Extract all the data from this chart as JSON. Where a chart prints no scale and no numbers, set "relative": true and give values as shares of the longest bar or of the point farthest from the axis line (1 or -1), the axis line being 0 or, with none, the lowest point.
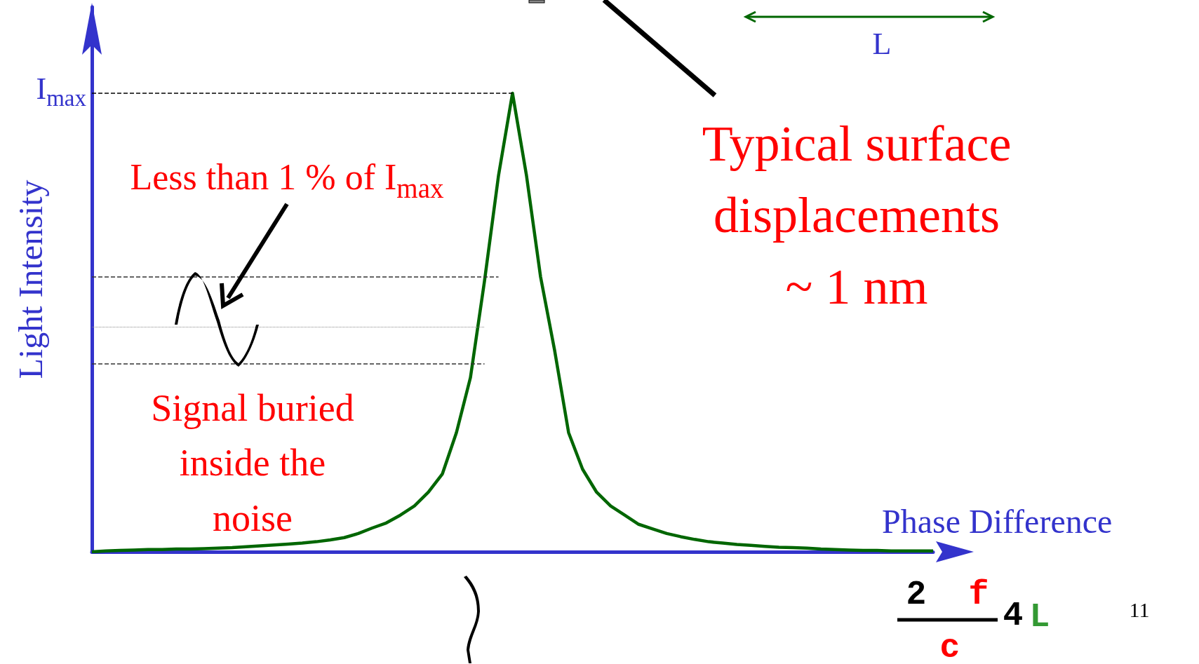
{
  "chart_data": {
    "type": "line",
    "relative": true,
    "xlabel": "Phase Difference",
    "ylabel": "Light Intensity",
    "categories": [
      null,
      null,
      null,
      null,
      null,
      null,
      null,
      null,
      null,
      null,
      null,
      null,
      null,
      null,
      null,
      null,
      null,
      null,
      null,
      null,
      null,
      null,
      null,
      null,
      null,
      null,
      null,
      null,
      null,
      null,
      null,
      null,
      null,
      null,
      null,
      null,
      null,
      null,
      null,
      null,
      null,
      null,
      null,
      null,
      null,
      null,
      null,
      null,
      null,
      null,
      null,
      null,
      null,
      null,
      null,
      null,
      null,
      null,
      null,
      null,
      null
    ],
    "series": [
      {
        "color": "#006600",
        "values": [
          0,
          0.002,
          0.003,
          0.004,
          0.005,
          0.005,
          0.006,
          0.006,
          0.007,
          0.008,
          0.009,
          0.011,
          0.013,
          0.015,
          0.017,
          0.019,
          0.022,
          0.026,
          0.031,
          0.04,
          0.052,
          0.063,
          0.08,
          0.1,
          0.13,
          0.17,
          0.26,
          0.38,
          0.59,
          0.82,
          1,
          0.82,
          0.6,
          0.44,
          0.26,
          0.18,
          0.13,
          0.1,
          0.08,
          0.06,
          0.05,
          0.04,
          0.033,
          0.027,
          0.022,
          0.019,
          0.016,
          0.014,
          0.012,
          0.01,
          0.009,
          0.008,
          0.006,
          0.005,
          0.004,
          0.003,
          0.003,
          0.002,
          0.002,
          0.002,
          0.002
        ]
      }
    ],
    "ref_lines": [
      {
        "axis": "y",
        "value": 1,
        "label": "I$_{max}$",
        "line_style": "dashed",
        "color": "#000000"
      },
      {
        "axis": "y",
        "value": 0.6,
        "line_style": "dashed",
        "color": "#333333"
      },
      {
        "axis": "y",
        "value": 0.49,
        "line_style": "dotted",
        "color": "#888888"
      },
      {
        "axis": "y",
        "value": 0.41,
        "line_style": "dashed",
        "color": "#333333"
      }
    ],
    "annotations": [
      "Less than 1 % of I$_{max}$",
      "Signal buried\ninside the\nnoise",
      "Typical surface\ndisplacements\n~ 1 nm",
      "L",
      "2",
      "f",
      "c",
      "4",
      "L",
      "11"
    ],
    "grid": false,
    "marker": "none",
    "line_style": "solid"
  }
}
